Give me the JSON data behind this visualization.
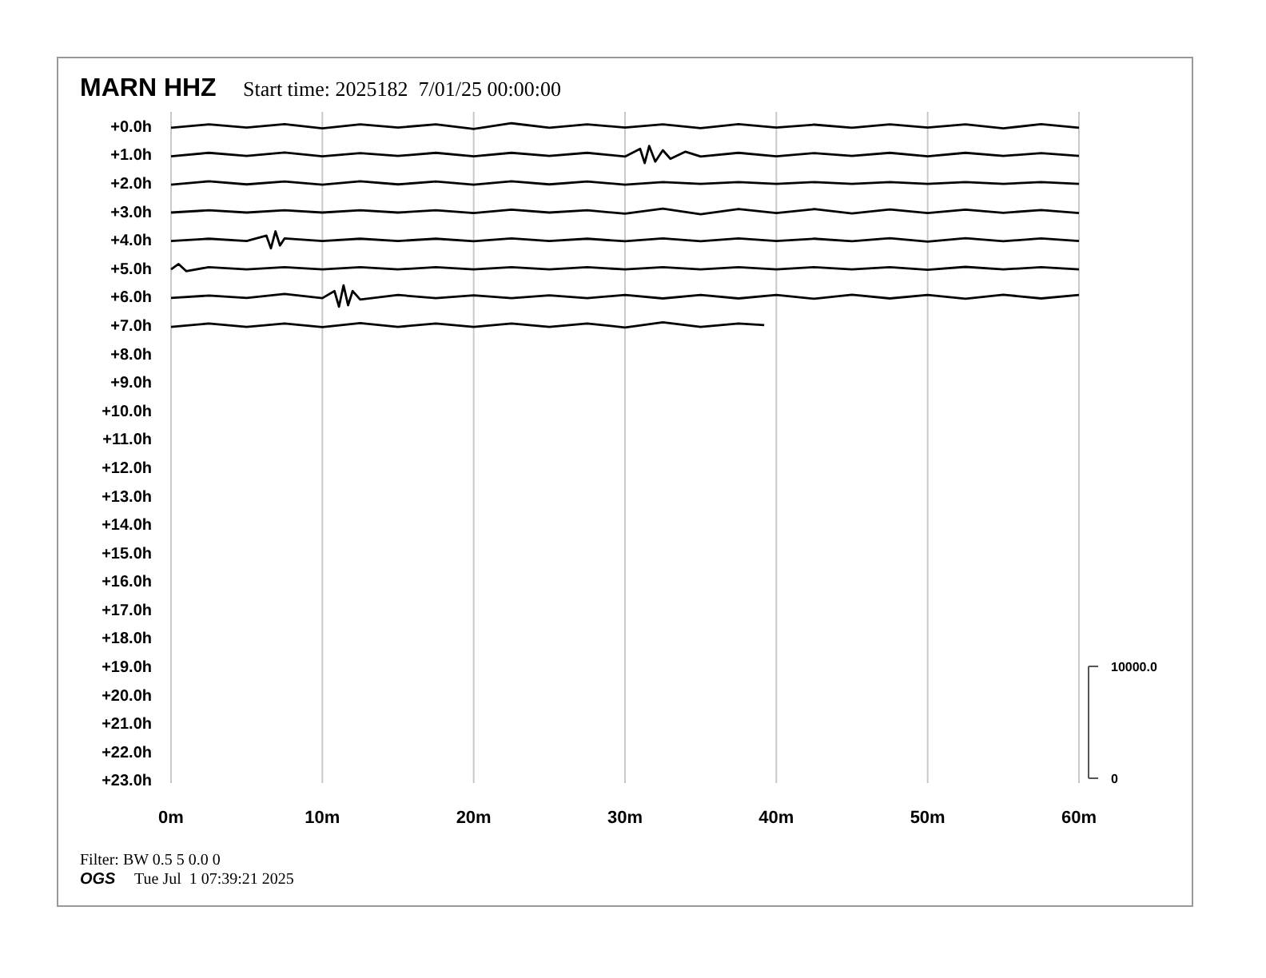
{
  "chart_data": {
    "type": "line",
    "title": "MARN HHZ",
    "subtitle": "Start time: 2025182  7/01/25 00:00:00",
    "annotations": [
      "Filter: BW 0.5 5 0.0 0",
      "OGS",
      "Tue Jul  1 07:39:21 2025"
    ],
    "xlim": [
      0,
      60
    ],
    "xticks": [
      {
        "value": 0,
        "label": "0m"
      },
      {
        "value": 10,
        "label": "10m"
      },
      {
        "value": 20,
        "label": "20m"
      },
      {
        "value": 30,
        "label": "30m"
      },
      {
        "value": 40,
        "label": "40m"
      },
      {
        "value": 50,
        "label": "50m"
      },
      {
        "value": 60,
        "label": "60m"
      }
    ],
    "ylim": [
      23.1,
      -0.5
    ],
    "yticks": [
      {
        "value": 0,
        "label": "+0.0h"
      },
      {
        "value": 1,
        "label": "+1.0h"
      },
      {
        "value": 2,
        "label": "+2.0h"
      },
      {
        "value": 3,
        "label": "+3.0h"
      },
      {
        "value": 4,
        "label": "+4.0h"
      },
      {
        "value": 5,
        "label": "+5.0h"
      },
      {
        "value": 6,
        "label": "+6.0h"
      },
      {
        "value": 7,
        "label": "+7.0h"
      },
      {
        "value": 8,
        "label": "+8.0h"
      },
      {
        "value": 9,
        "label": "+9.0h"
      },
      {
        "value": 10,
        "label": "+10.0h"
      },
      {
        "value": 11,
        "label": "+11.0h"
      },
      {
        "value": 12,
        "label": "+12.0h"
      },
      {
        "value": 13,
        "label": "+13.0h"
      },
      {
        "value": 14,
        "label": "+14.0h"
      },
      {
        "value": 15,
        "label": "+15.0h"
      },
      {
        "value": 16,
        "label": "+16.0h"
      },
      {
        "value": 17,
        "label": "+17.0h"
      },
      {
        "value": 18,
        "label": "+18.0h"
      },
      {
        "value": 19,
        "label": "+19.0h"
      },
      {
        "value": 20,
        "label": "+20.0h"
      },
      {
        "value": 21,
        "label": "+21.0h"
      },
      {
        "value": 22,
        "label": "+22.0h"
      },
      {
        "value": 23,
        "label": "+23.0h"
      }
    ],
    "y2lim": [
      -430,
      59570
    ],
    "y2ticks": [
      0,
      {
        "value": 10000,
        "label": "10000.0"
      }
    ],
    "grid": "x",
    "marker": "none",
    "line_style": "solid",
    "series": [
      {
        "color": "#000000",
        "x": [
          0,
          2.5,
          5,
          7.5,
          10,
          12.5,
          15,
          17.5,
          20,
          22.5,
          25,
          27.5,
          30,
          32.5,
          35,
          37.5,
          40,
          42.5,
          45,
          47.5,
          50,
          52.5,
          55,
          57.5,
          60
        ],
        "values": [
          0.06,
          -0.06,
          0.05,
          -0.07,
          0.08,
          -0.06,
          0.05,
          -0.06,
          0.1,
          -0.1,
          0.06,
          -0.06,
          0.05,
          -0.06,
          0.07,
          -0.07,
          0.05,
          -0.05,
          0.06,
          -0.06,
          0.05,
          -0.06,
          0.08,
          -0.07,
          0.06
        ]
      },
      {
        "color": "#000000",
        "x": [
          0,
          2.5,
          5,
          7.5,
          10,
          12.5,
          15,
          17.5,
          20,
          22.5,
          25,
          27.5,
          30,
          31,
          31.3,
          31.6,
          32,
          32.5,
          33,
          34,
          35,
          37.5,
          40,
          42.5,
          45,
          47.5,
          50,
          52.5,
          55,
          57.5,
          60
        ],
        "values": [
          1.06,
          0.94,
          1.05,
          0.93,
          1.06,
          0.95,
          1.05,
          0.94,
          1.06,
          0.94,
          1.05,
          0.94,
          1.07,
          0.8,
          1.3,
          0.7,
          1.25,
          0.85,
          1.15,
          0.9,
          1.07,
          0.94,
          1.06,
          0.95,
          1.05,
          0.94,
          1.06,
          0.94,
          1.05,
          0.95,
          1.05
        ]
      },
      {
        "color": "#000000",
        "x": [
          0,
          2.5,
          5,
          7.5,
          10,
          12.5,
          15,
          17.5,
          20,
          22.5,
          25,
          27.5,
          30,
          32.5,
          35,
          37.5,
          40,
          42.5,
          45,
          47.5,
          50,
          52.5,
          55,
          57.5,
          60
        ],
        "values": [
          2.06,
          1.94,
          2.05,
          1.95,
          2.06,
          1.94,
          2.05,
          1.95,
          2.06,
          1.94,
          2.05,
          1.95,
          2.06,
          1.97,
          2.03,
          1.97,
          2.03,
          1.97,
          2.03,
          1.97,
          2.03,
          1.97,
          2.03,
          1.97,
          2.03
        ]
      },
      {
        "color": "#000000",
        "x": [
          0,
          2.5,
          5,
          7.5,
          10,
          12.5,
          15,
          17.5,
          20,
          22.5,
          25,
          27.5,
          30,
          32.5,
          35,
          37.5,
          40,
          42.5,
          45,
          47.5,
          50,
          52.5,
          55,
          57.5,
          60
        ],
        "values": [
          3.04,
          2.96,
          3.04,
          2.96,
          3.04,
          2.96,
          3.04,
          2.96,
          3.06,
          2.94,
          3.04,
          2.96,
          3.08,
          2.9,
          3.1,
          2.92,
          3.06,
          2.92,
          3.07,
          2.93,
          3.06,
          2.94,
          3.05,
          2.95,
          3.06
        ]
      },
      {
        "color": "#000000",
        "x": [
          0,
          2.5,
          5,
          6.3,
          6.6,
          6.9,
          7.2,
          7.5,
          10,
          12.5,
          15,
          17.5,
          20,
          22.5,
          25,
          27.5,
          30,
          32.5,
          35,
          37.5,
          40,
          42.5,
          45,
          47.5,
          50,
          52.5,
          55,
          57.5,
          60
        ],
        "values": [
          4.04,
          3.96,
          4.04,
          3.85,
          4.3,
          3.7,
          4.2,
          3.95,
          4.04,
          3.96,
          4.04,
          3.96,
          4.05,
          3.95,
          4.04,
          3.96,
          4.05,
          3.95,
          4.05,
          3.95,
          4.04,
          3.96,
          4.05,
          3.94,
          4.06,
          3.94,
          4.05,
          3.95,
          4.04
        ]
      },
      {
        "color": "#000000",
        "x": [
          0,
          0.5,
          1,
          2.5,
          5,
          7.5,
          10,
          12.5,
          15,
          17.5,
          20,
          22.5,
          25,
          27.5,
          30,
          32.5,
          35,
          37.5,
          40,
          42.5,
          45,
          47.5,
          50,
          52.5,
          55,
          57.5,
          60
        ],
        "values": [
          5.04,
          4.85,
          5.1,
          4.96,
          5.04,
          4.96,
          5.04,
          4.96,
          5.04,
          4.96,
          5.04,
          4.96,
          5.04,
          4.96,
          5.04,
          4.96,
          5.04,
          4.96,
          5.04,
          4.96,
          5.04,
          4.96,
          5.05,
          4.95,
          5.04,
          4.96,
          5.04
        ]
      },
      {
        "color": "#000000",
        "x": [
          0,
          2.5,
          5,
          7.5,
          10,
          10.8,
          11.1,
          11.4,
          11.7,
          12,
          12.5,
          15,
          17.5,
          20,
          22.5,
          25,
          27.5,
          30,
          32.5,
          35,
          37.5,
          40,
          42.5,
          45,
          47.5,
          50,
          52.5,
          55,
          57.5,
          60
        ],
        "values": [
          6.04,
          5.96,
          6.04,
          5.9,
          6.05,
          5.8,
          6.35,
          5.6,
          6.3,
          5.8,
          6.1,
          5.94,
          6.05,
          5.95,
          6.05,
          5.95,
          6.05,
          5.94,
          6.06,
          5.94,
          6.06,
          5.94,
          6.07,
          5.93,
          6.06,
          5.94,
          6.07,
          5.93,
          6.06,
          5.94
        ]
      },
      {
        "color": "#000000",
        "x": [
          0,
          2.5,
          5,
          7.5,
          10,
          12.5,
          15,
          17.5,
          20,
          22.5,
          25,
          27.5,
          30,
          32.5,
          35,
          37.5,
          39.2
        ],
        "values": [
          7.06,
          6.94,
          7.06,
          6.94,
          7.07,
          6.93,
          7.06,
          6.94,
          7.06,
          6.94,
          7.06,
          6.94,
          7.08,
          6.9,
          7.06,
          6.94,
          7.0
        ]
      }
    ]
  }
}
